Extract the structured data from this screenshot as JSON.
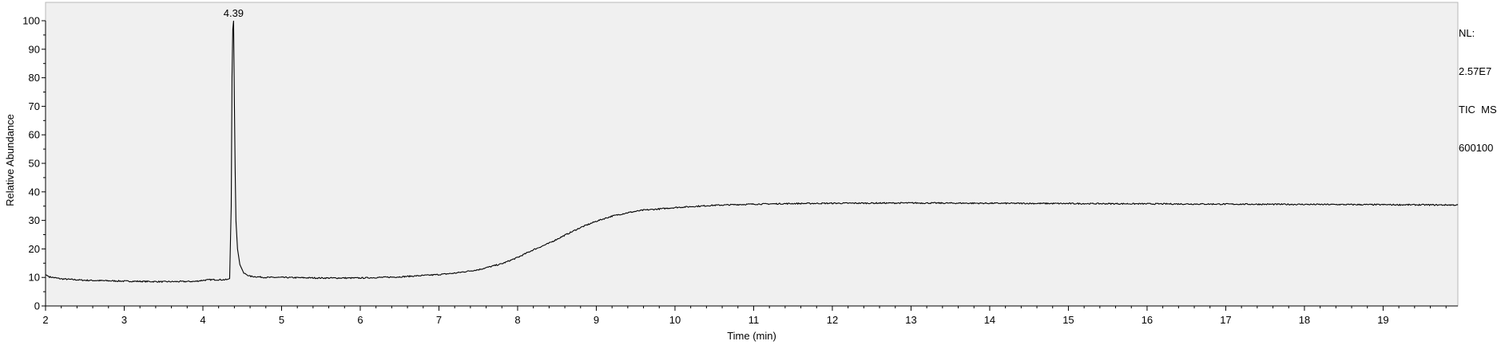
{
  "info": {
    "nl": "NL:",
    "nl_value": "2.57E7",
    "scan": "TIC  MS",
    "sample": "600100"
  },
  "chart_data": {
    "type": "line",
    "xlabel": "Time (min)",
    "ylabel": "Relative Abundance",
    "xlim": [
      2,
      19.95
    ],
    "ylim": [
      0,
      100
    ],
    "xticks": [
      2,
      3,
      4,
      5,
      6,
      7,
      8,
      9,
      10,
      11,
      12,
      13,
      14,
      15,
      16,
      17,
      18,
      19
    ],
    "yticks": [
      0,
      10,
      20,
      30,
      40,
      50,
      60,
      70,
      80,
      90,
      100
    ],
    "grid": false,
    "plot_background": "#f0f0f0",
    "line_color": "#000000",
    "peak_labels": [
      {
        "x": 4.39,
        "y": 100,
        "text": "4.39"
      }
    ],
    "series": [
      {
        "values": [
          [
            2.0,
            11.0
          ],
          [
            2.05,
            10.2
          ],
          [
            2.2,
            9.5
          ],
          [
            2.5,
            9.0
          ],
          [
            3.0,
            8.7
          ],
          [
            3.5,
            8.5
          ],
          [
            3.9,
            8.6
          ],
          [
            4.0,
            9.0
          ],
          [
            4.1,
            9.2
          ],
          [
            4.3,
            9.2
          ],
          [
            4.34,
            9.6
          ],
          [
            4.36,
            35
          ],
          [
            4.37,
            80
          ],
          [
            4.38,
            97
          ],
          [
            4.39,
            100
          ],
          [
            4.4,
            72
          ],
          [
            4.41,
            48
          ],
          [
            4.42,
            30
          ],
          [
            4.44,
            20
          ],
          [
            4.47,
            14.5
          ],
          [
            4.52,
            11.5
          ],
          [
            4.6,
            10.4
          ],
          [
            4.8,
            10.0
          ],
          [
            5.0,
            10.0
          ],
          [
            5.5,
            9.8
          ],
          [
            6.0,
            9.8
          ],
          [
            6.5,
            10.2
          ],
          [
            7.0,
            11.0
          ],
          [
            7.2,
            11.5
          ],
          [
            7.5,
            12.7
          ],
          [
            7.8,
            14.8
          ],
          [
            8.0,
            17.0
          ],
          [
            8.2,
            19.7
          ],
          [
            8.4,
            22.0
          ],
          [
            8.6,
            24.8
          ],
          [
            8.8,
            27.5
          ],
          [
            9.0,
            29.7
          ],
          [
            9.2,
            31.5
          ],
          [
            9.4,
            32.7
          ],
          [
            9.6,
            33.6
          ],
          [
            9.8,
            34.0
          ],
          [
            10.0,
            34.5
          ],
          [
            10.5,
            35.3
          ],
          [
            11.0,
            35.7
          ],
          [
            11.5,
            35.9
          ],
          [
            12.0,
            36.0
          ],
          [
            13.0,
            36.1
          ],
          [
            14.0,
            36.0
          ],
          [
            15.0,
            35.9
          ],
          [
            16.0,
            35.8
          ],
          [
            17.0,
            35.7
          ],
          [
            18.0,
            35.6
          ],
          [
            19.0,
            35.5
          ],
          [
            19.95,
            35.4
          ]
        ]
      }
    ]
  }
}
